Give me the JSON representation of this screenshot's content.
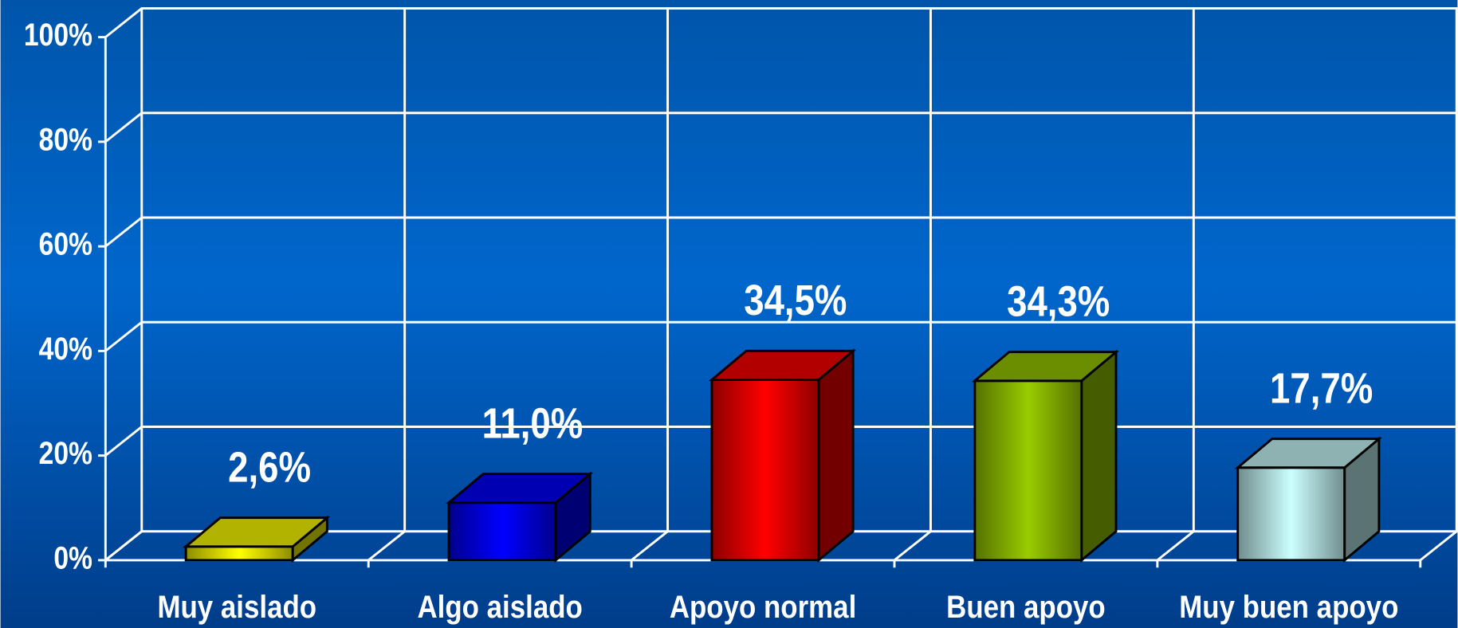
{
  "chart_data": {
    "type": "bar3d",
    "categories": [
      "Muy aislado",
      "Algo aislado",
      "Apoyo normal",
      "Buen apoyo",
      "Muy buen apoyo"
    ],
    "values": [
      2.6,
      11.0,
      34.5,
      34.3,
      17.7
    ],
    "value_labels": [
      "2,6%",
      "11,0%",
      "34,5%",
      "34,3%",
      "17,7%"
    ],
    "colors": [
      "#ffff00",
      "#0000ff",
      "#ff0000",
      "#99cc00",
      "#ccffff"
    ],
    "ylim": [
      0,
      100
    ],
    "yticks": [
      {
        "value": 0,
        "label": "0%"
      },
      {
        "value": 20,
        "label": "20%"
      },
      {
        "value": 40,
        "label": "40%"
      },
      {
        "value": 60,
        "label": "60%"
      },
      {
        "value": 80,
        "label": "80%"
      },
      {
        "value": 100,
        "label": "100%"
      }
    ],
    "grid": true
  }
}
